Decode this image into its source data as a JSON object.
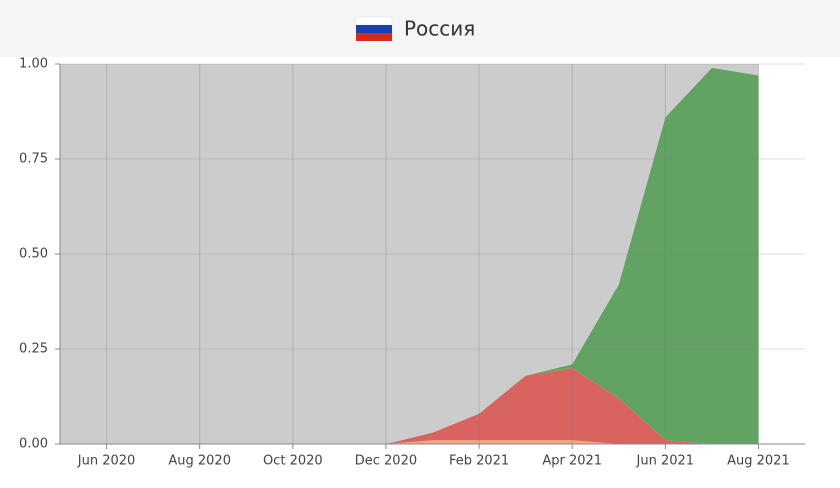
{
  "chart_data": {
    "type": "stacked-area",
    "title": "Россия",
    "x": [
      "2020-05",
      "2020-06",
      "2020-07",
      "2020-08",
      "2020-09",
      "2020-10",
      "2020-11",
      "2020-12",
      "2021-01",
      "2021-02",
      "2021-03",
      "2021-04",
      "2021-05",
      "2021-06",
      "2021-07",
      "2021-08"
    ],
    "series": [
      {
        "color": "#f4a582",
        "values": [
          0,
          0,
          0,
          0,
          0,
          0,
          0,
          0,
          0.01,
          0.01,
          0.01,
          0.01,
          0,
          0,
          0,
          0
        ]
      },
      {
        "color": "#d9645f",
        "values": [
          0,
          0,
          0,
          0,
          0,
          0,
          0,
          0,
          0.02,
          0.07,
          0.17,
          0.19,
          0.12,
          0.01,
          0,
          0
        ]
      },
      {
        "color": "#62a363",
        "values": [
          0,
          0,
          0,
          0,
          0,
          0,
          0,
          0,
          0,
          0,
          0,
          0.01,
          0.3,
          0.85,
          0.99,
          0.97
        ]
      },
      {
        "color": "#cccccc",
        "values": [
          1,
          1,
          1,
          1,
          1,
          1,
          1,
          1,
          0.97,
          0.92,
          0.82,
          0.79,
          0.58,
          0.14,
          0.01,
          0.03
        ]
      }
    ],
    "xlim": [
      "2020-05",
      "2021-09"
    ],
    "xticks": [
      {
        "value": "2020-06",
        "label": "Jun 2020"
      },
      {
        "value": "2020-08",
        "label": "Aug 2020"
      },
      {
        "value": "2020-10",
        "label": "Oct 2020"
      },
      {
        "value": "2020-12",
        "label": "Dec 2020"
      },
      {
        "value": "2021-02",
        "label": "Feb 2021"
      },
      {
        "value": "2021-04",
        "label": "Apr 2021"
      },
      {
        "value": "2021-06",
        "label": "Jun 2021"
      },
      {
        "value": "2021-08",
        "label": "Aug 2021"
      }
    ],
    "ylim": [
      0,
      1
    ],
    "yticks": [
      {
        "value": 0,
        "label": "0.00"
      },
      {
        "value": 0.25,
        "label": "0.25"
      },
      {
        "value": 0.5,
        "label": "0.50"
      },
      {
        "value": 0.75,
        "label": "0.75"
      },
      {
        "value": 1,
        "label": "1.00"
      }
    ],
    "grid": true
  }
}
